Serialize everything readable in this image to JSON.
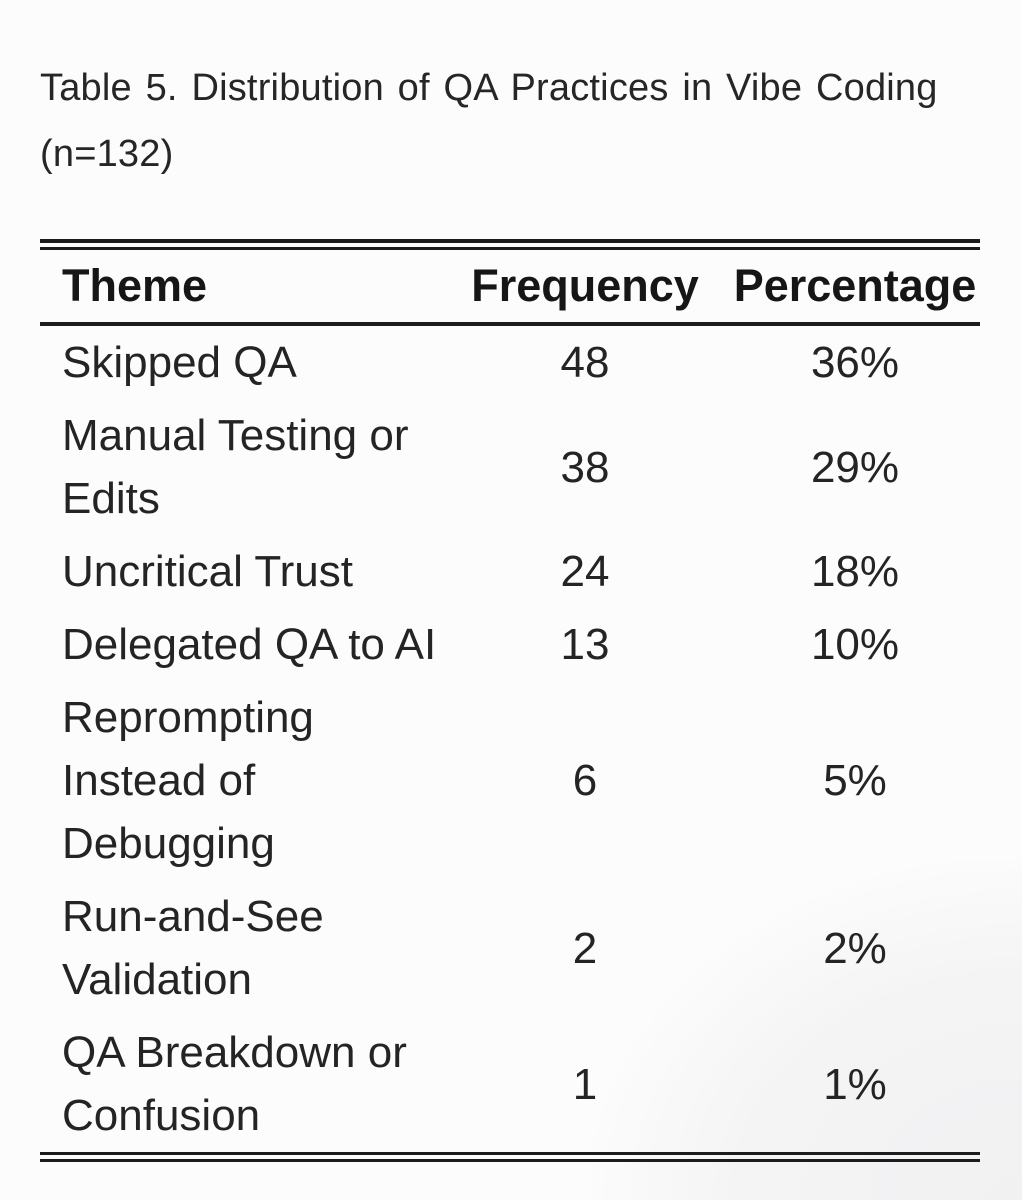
{
  "title": {
    "line1": "Table 5. Distribution of QA Practices in Vibe Coding",
    "line2": "(n=132)"
  },
  "table": {
    "columns": [
      "Theme",
      "Frequency",
      "Percentage"
    ],
    "rows": [
      {
        "theme": "Skipped QA",
        "theme_lines": [
          "Skipped QA"
        ],
        "frequency": "48",
        "percentage": "36%"
      },
      {
        "theme": "Manual Testing or Edits",
        "theme_lines": [
          "Manual Testing or",
          "Edits"
        ],
        "frequency": "38",
        "percentage": "29%"
      },
      {
        "theme": "Uncritical Trust",
        "theme_lines": [
          "Uncritical Trust"
        ],
        "frequency": "24",
        "percentage": "18%"
      },
      {
        "theme": "Delegated QA to AI",
        "theme_lines": [
          "Delegated QA to AI"
        ],
        "frequency": "13",
        "percentage": "10%"
      },
      {
        "theme": "Reprompting Instead of Debugging",
        "theme_lines": [
          "Reprompting",
          "Instead of",
          "Debugging"
        ],
        "frequency": "6",
        "percentage": "5%"
      },
      {
        "theme": "Run-and-See Validation",
        "theme_lines": [
          "Run-and-See",
          "Validation"
        ],
        "frequency": "2",
        "percentage": "2%"
      },
      {
        "theme": "QA Breakdown or Confusion",
        "theme_lines": [
          "QA Breakdown or",
          "Confusion"
        ],
        "frequency": "1",
        "percentage": "1%"
      }
    ]
  },
  "chart_data": {
    "type": "table",
    "title": "Table 5. Distribution of QA Practices in Vibe Coding (n=132)",
    "categories": [
      "Skipped QA",
      "Manual Testing or Edits",
      "Uncritical Trust",
      "Delegated QA to AI",
      "Reprompting Instead of Debugging",
      "Run-and-See Validation",
      "QA Breakdown or Confusion"
    ],
    "series": [
      {
        "name": "Frequency",
        "values": [
          48,
          38,
          24,
          13,
          6,
          2,
          1
        ]
      },
      {
        "name": "Percentage",
        "values": [
          "36%",
          "29%",
          "18%",
          "10%",
          "5%",
          "2%",
          "1%"
        ]
      }
    ]
  },
  "colors": {
    "background": "#fcfcfc",
    "text": "#242424",
    "rule": "#1c1c1c",
    "corner_shade": "#f3f3f4"
  }
}
